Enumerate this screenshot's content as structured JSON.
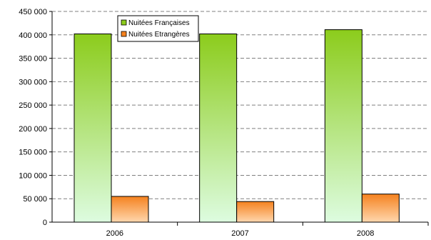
{
  "chart_data": {
    "type": "bar",
    "categories": [
      "2006",
      "2007",
      "2008"
    ],
    "series": [
      {
        "name": "Nuitées Françaises",
        "values": [
          402000,
          402000,
          411000
        ],
        "color": "#8ccc1c"
      },
      {
        "name": "Nuitées Etrangères",
        "values": [
          55000,
          44000,
          60000
        ],
        "color": "#f5821f"
      }
    ],
    "y_ticks": [
      0,
      50000,
      100000,
      150000,
      200000,
      250000,
      300000,
      350000,
      400000,
      450000
    ],
    "y_tick_labels": [
      "0",
      "50 000",
      "100 000",
      "150 000",
      "200 000",
      "250 000",
      "300 000",
      "350 000",
      "400 000",
      "450 000"
    ],
    "ylim": [
      0,
      450000
    ],
    "grid": true,
    "legend_position": "top-left"
  }
}
